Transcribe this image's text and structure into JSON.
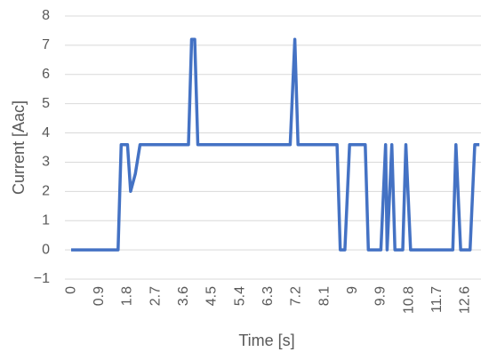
{
  "chart_data": {
    "type": "line",
    "x_label": "Time [s]",
    "y_label": "Current [Aac]",
    "x": [
      0,
      1.5,
      1.6,
      1.8,
      1.9,
      2.05,
      2.2,
      3.75,
      3.85,
      3.95,
      4.05,
      7.0,
      7.15,
      7.25,
      8.5,
      8.6,
      8.75,
      8.9,
      9.4,
      9.5,
      9.9,
      10.05,
      10.1,
      10.25,
      10.35,
      10.6,
      10.7,
      10.85,
      12.2,
      12.3,
      12.45,
      12.75,
      12.9,
      13.05
    ],
    "values": [
      0,
      0,
      3.6,
      3.6,
      2.0,
      2.6,
      3.6,
      3.6,
      7.2,
      7.2,
      3.6,
      3.6,
      7.2,
      3.6,
      3.6,
      0,
      0,
      3.6,
      3.6,
      0,
      0,
      3.6,
      0,
      3.6,
      0,
      0,
      3.6,
      0,
      0,
      3.6,
      0,
      0,
      3.6,
      3.6
    ],
    "color": "#4472c4",
    "xlim": [
      -0.2,
      13.1
    ],
    "xticks": [
      0,
      0.9,
      1.8,
      2.7,
      3.6,
      4.5,
      5.4,
      6.3,
      7.2,
      8.1,
      9,
      9.9,
      10.8,
      11.7,
      12.6
    ],
    "ylim": [
      -1,
      8
    ],
    "yticks": [
      {
        "value": -1,
        "label": "−1"
      },
      0,
      1,
      2,
      3,
      4,
      5,
      6,
      7,
      8
    ],
    "grid": true
  }
}
